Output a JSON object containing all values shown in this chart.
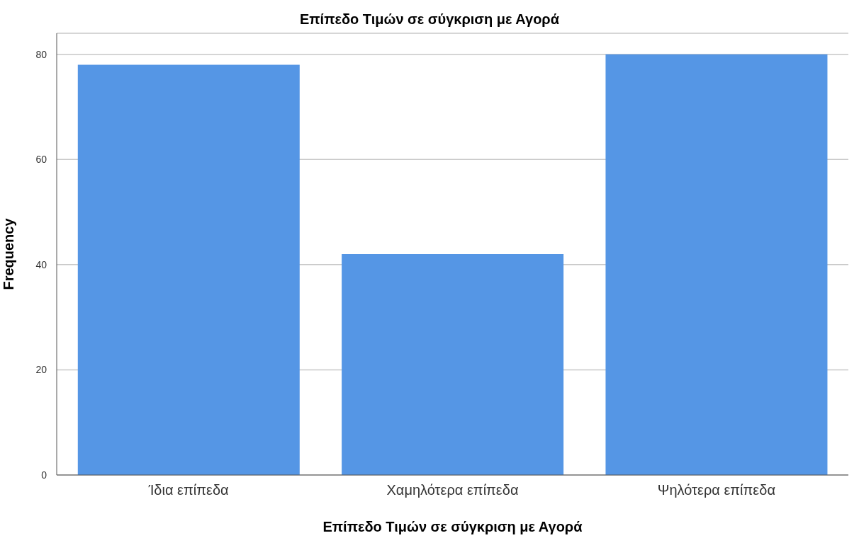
{
  "chart_data": {
    "type": "bar",
    "title": "Επίπεδο Τιμών σε σύγκριση με  Αγορά",
    "xlabel": "Επίπεδο Τιμών σε σύγκριση με  Αγορά",
    "ylabel": "Frequency",
    "categories": [
      "Ίδια επίπεδα",
      "Χαμηλότερα επίπεδα",
      "Ψηλότερα επίπεδα"
    ],
    "values": [
      78,
      42,
      80
    ],
    "color": "#5596e5",
    "ylim": [
      0,
      84
    ],
    "yticks": [
      0,
      20,
      40,
      60,
      80
    ],
    "grid": "y"
  }
}
